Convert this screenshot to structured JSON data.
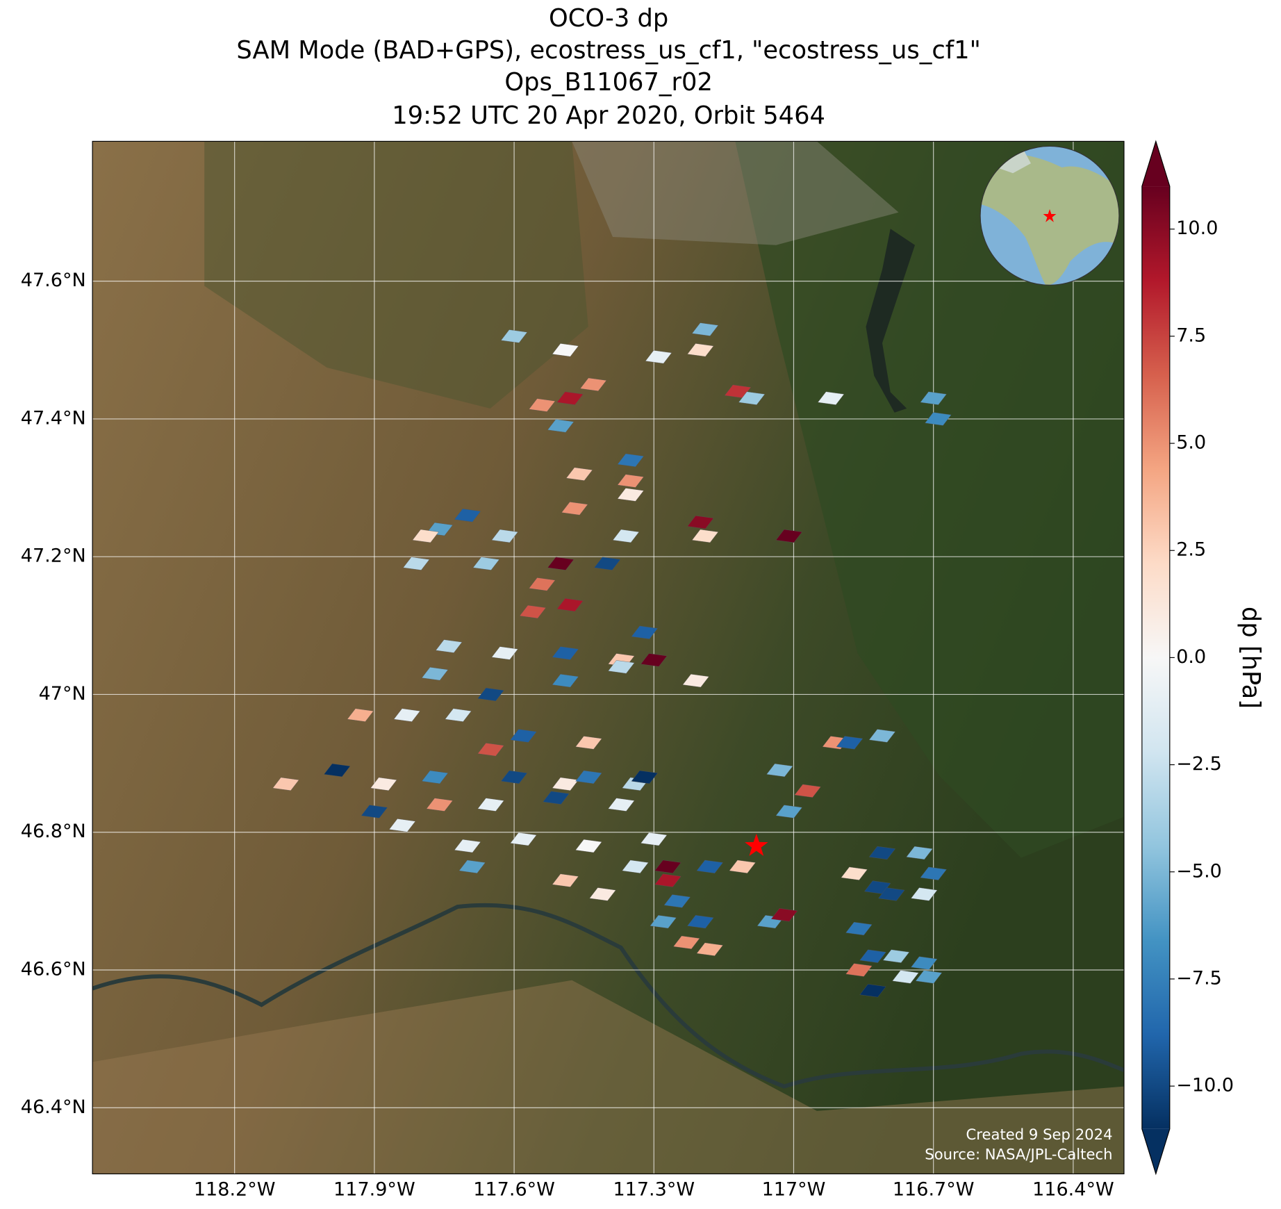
{
  "chart_data": {
    "type": "map",
    "title": [
      "OCO-3 dp",
      "SAM Mode (BAD+GPS), ecostress_us_cf1, \"ecostress_us_cf1\"",
      "Ops_B11067_r02",
      "19:52 UTC 20 Apr 2020, Orbit 5464"
    ],
    "xlim": [
      -118.505,
      -116.291
    ],
    "ylim": [
      46.304,
      47.803
    ],
    "xticks": [
      {
        "value": -118.2,
        "label": "118.2°W"
      },
      {
        "value": -117.9,
        "label": "117.9°W"
      },
      {
        "value": -117.6,
        "label": "117.6°W"
      },
      {
        "value": -117.3,
        "label": "117.3°W"
      },
      {
        "value": -117.0,
        "label": "117°W"
      },
      {
        "value": -116.7,
        "label": "116.7°W"
      },
      {
        "value": -116.4,
        "label": "116.4°W"
      }
    ],
    "yticks": [
      {
        "value": 47.6,
        "label": "47.6°N"
      },
      {
        "value": 47.4,
        "label": "47.4°N"
      },
      {
        "value": 47.2,
        "label": "47.2°N"
      },
      {
        "value": 47.0,
        "label": "47°N"
      },
      {
        "value": 46.8,
        "label": "46.8°N"
      },
      {
        "value": 46.6,
        "label": "46.6°N"
      },
      {
        "value": 46.4,
        "label": "46.4°N"
      }
    ],
    "grid": true,
    "colorbar": {
      "label": "dp [hPa]",
      "clim": [
        -11,
        11
      ],
      "ticks": [
        {
          "value": 10,
          "label": "10.0"
        },
        7.5,
        {
          "value": 5,
          "label": "5.0"
        },
        2.5,
        {
          "value": 0,
          "label": "0.0"
        },
        {
          "value": -2.5,
          "label": "−2.5"
        },
        {
          "value": -5,
          "label": "−5.0"
        },
        {
          "value": -7.5,
          "label": "−7.5"
        },
        {
          "value": -10,
          "label": "−10.0"
        }
      ],
      "colormap": [
        "#053061",
        "#2166ac",
        "#4393c3",
        "#92c5de",
        "#d1e5f0",
        "#f7f7f7",
        "#fddbc7",
        "#f4a582",
        "#d6604d",
        "#b2182b",
        "#67001f"
      ]
    },
    "soundings": {
      "lon": [
        -117.6,
        -117.49,
        -117.48,
        -117.54,
        -117.5,
        -117.43,
        -117.29,
        -117.19,
        -117.2,
        -117.12,
        -117.09,
        -116.92,
        -116.7,
        -116.69,
        -117.35,
        -117.35,
        -117.46,
        -117.47,
        -117.35,
        -117.2,
        -117.19,
        -117.01,
        -117.36,
        -117.7,
        -117.76,
        -117.79,
        -117.62,
        -117.5,
        -117.4,
        -117.81,
        -117.66,
        -117.54,
        -117.48,
        -117.56,
        -117.32,
        -117.74,
        -117.62,
        -117.49,
        -117.37,
        -117.3,
        -117.77,
        -117.65,
        -117.49,
        -117.37,
        -117.21,
        -117.93,
        -117.83,
        -117.72,
        -117.58,
        -117.44,
        -117.65,
        -118.09,
        -117.98,
        -117.88,
        -117.77,
        -117.6,
        -117.49,
        -117.44,
        -117.34,
        -117.9,
        -117.76,
        -117.65,
        -117.51,
        -117.37,
        -117.32,
        -117.84,
        -117.7,
        -117.58,
        -117.44,
        -117.3,
        -117.69,
        -117.49,
        -117.34,
        -117.27,
        -117.27,
        -117.41,
        -117.25,
        -117.28,
        -117.2,
        -117.23,
        -117.18,
        -117.03,
        -116.97,
        -117.01,
        -116.91,
        -116.88,
        -116.81,
        -117.18,
        -117.11,
        -117.05,
        -117.02,
        -116.81,
        -116.73,
        -116.87,
        -116.82,
        -116.7,
        -116.79,
        -116.72,
        -116.86,
        -116.83,
        -116.78,
        -116.72,
        -116.86,
        -116.76,
        -116.71,
        -116.83
      ],
      "lat": [
        47.52,
        47.5,
        47.43,
        47.42,
        47.39,
        47.45,
        47.49,
        47.53,
        47.5,
        47.44,
        47.43,
        47.43,
        47.43,
        47.4,
        47.34,
        47.31,
        47.32,
        47.27,
        47.29,
        47.25,
        47.23,
        47.23,
        47.23,
        47.26,
        47.24,
        47.23,
        47.23,
        47.19,
        47.19,
        47.19,
        47.19,
        47.16,
        47.13,
        47.12,
        47.09,
        47.07,
        47.06,
        47.06,
        47.05,
        47.05,
        47.03,
        47.0,
        47.02,
        47.04,
        47.02,
        46.97,
        46.97,
        46.97,
        46.94,
        46.93,
        46.92,
        46.87,
        46.89,
        46.87,
        46.88,
        46.88,
        46.87,
        46.88,
        46.87,
        46.83,
        46.84,
        46.84,
        46.85,
        46.84,
        46.88,
        46.81,
        46.78,
        46.79,
        46.78,
        46.79,
        46.75,
        46.73,
        46.75,
        46.75,
        46.73,
        46.71,
        46.7,
        46.67,
        46.67,
        46.64,
        46.63,
        46.89,
        46.86,
        46.83,
        46.93,
        46.93,
        46.94,
        46.75,
        46.75,
        46.67,
        46.68,
        46.77,
        46.77,
        46.74,
        46.72,
        46.74,
        46.71,
        46.71,
        46.66,
        46.62,
        46.62,
        46.61,
        46.6,
        46.59,
        46.59,
        46.57
      ],
      "dp": [
        -4,
        0,
        9,
        5,
        -6,
        5,
        -1,
        -5,
        2,
        8,
        -4,
        -1,
        -6,
        -7,
        -8,
        5,
        3,
        5,
        1,
        10,
        2,
        11,
        -2,
        -9,
        -6,
        2,
        -3,
        11,
        -10,
        -3,
        -4,
        6,
        9,
        7,
        -9,
        -3,
        -1,
        -9,
        3,
        11,
        -5,
        -10,
        -7,
        -3,
        1,
        4,
        -1,
        -2,
        -9,
        3,
        7,
        3,
        -11,
        1,
        -7,
        -10,
        1,
        -8,
        -3,
        -10,
        5,
        -1,
        -10,
        -1,
        -11,
        -1,
        -1,
        -1,
        0,
        -1,
        -6,
        3,
        -2,
        11,
        9,
        1,
        -8,
        -6,
        -9,
        5,
        4,
        -5,
        7,
        -6,
        5,
        -9,
        -5,
        -9,
        3,
        -6,
        10,
        -10,
        -5,
        2,
        -10,
        -8,
        -10,
        -2,
        -8,
        -9,
        -4,
        -7,
        6,
        -2,
        -6,
        -11
      ]
    },
    "target": {
      "lon": -117.08,
      "lat": 46.78
    },
    "annotations": [
      "Created 9 Sep 2024",
      "Source: NASA/JPL-Caltech"
    ]
  }
}
